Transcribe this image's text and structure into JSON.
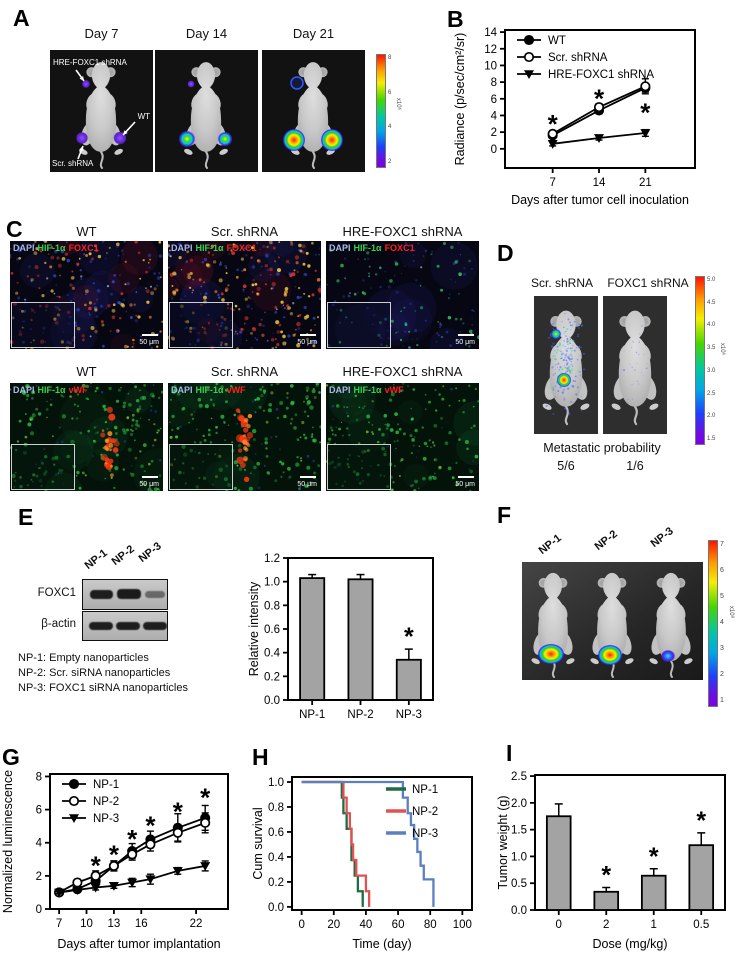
{
  "panels": {
    "A": {
      "label": "A",
      "day_titles": [
        "Day 7",
        "Day 14",
        "Day 21"
      ],
      "annotation_hre": "HRE-FOXC1 shRNA",
      "annotation_wt": "WT",
      "annotation_scr": "Scr. shRNA",
      "colorbar_ticks": [
        "8",
        "6",
        "4",
        "2"
      ],
      "colorbar_unit": "x10⁶"
    },
    "B": {
      "label": "B"
    },
    "C": {
      "label": "C",
      "col_titles": [
        "WT",
        "Scr. shRNA",
        "HRE-FOXC1 shRNA"
      ],
      "row1_markers": {
        "dapi": "DAPI",
        "hif": "HIF-1α",
        "third": "FOXC1"
      },
      "row2_markers": {
        "dapi": "DAPI",
        "hif": "HIF-1α",
        "third": "vWF"
      },
      "marker_colors": {
        "dapi": "#aab8ea",
        "hif": "#39d24d",
        "third": "#ff2020"
      },
      "scale_label": "50 μm"
    },
    "D": {
      "label": "D",
      "titles": [
        "Scr. shRNA",
        "FOXC1 shRNA"
      ],
      "caption": "Metastatic probability",
      "probabilities": [
        "5/6",
        "1/6"
      ],
      "colorbar_ticks": [
        "5.0",
        "4.5",
        "4.0",
        "3.5",
        "3.0",
        "2.5",
        "2.0",
        "1.5"
      ],
      "colorbar_unit": "x10⁶"
    },
    "E": {
      "label": "E",
      "lane_labels": [
        "NP-1",
        "NP-2",
        "NP-3"
      ],
      "band_labels": [
        "FOXC1",
        "β-actin"
      ],
      "legend_lines": [
        "NP-1: Empty nanoparticles",
        "NP-2: Scr. siRNA nanoparticles",
        "NP-3: FOXC1 siRNA nanoparticles"
      ]
    },
    "F": {
      "label": "F",
      "lane_labels": [
        "NP-1",
        "NP-2",
        "NP-3"
      ],
      "colorbar_ticks": [
        "7",
        "6",
        "5",
        "4",
        "3",
        "2",
        "1"
      ],
      "colorbar_unit": "x10⁸"
    },
    "G": {
      "label": "G"
    },
    "H": {
      "label": "H"
    },
    "I": {
      "label": "I"
    }
  },
  "chart_data": [
    {
      "id": "chartB",
      "type": "line",
      "panel": "B",
      "xlabel": "Days after tumor cell inoculation",
      "ylabel": "Radiance (p/sec/cm²/sr)",
      "xlim": [
        -0.2,
        28.5
      ],
      "ylim": [
        -2.3,
        14.25
      ],
      "xticks": [
        7,
        14,
        21
      ],
      "yticks": [
        0,
        2,
        4,
        6,
        8,
        10,
        12,
        14
      ],
      "x": [
        7,
        14,
        21
      ],
      "series": [
        {
          "name": "WT",
          "marker": "circle",
          "fill": "filled",
          "color": "#000000",
          "values": [
            1.6,
            4.6,
            7.3
          ],
          "errors": [
            0.3,
            0.4,
            0.5
          ]
        },
        {
          "name": "Scr. shRNA",
          "marker": "circle",
          "fill": "open",
          "color": "#000000",
          "values": [
            1.8,
            5.0,
            7.5
          ],
          "errors": [
            0.3,
            0.4,
            0.9
          ]
        },
        {
          "name": "HRE-FOXC1 shRNA",
          "marker": "triangle-down",
          "fill": "filled",
          "color": "#000000",
          "values": [
            0.6,
            1.3,
            1.9
          ],
          "errors": [
            0.25,
            0.25,
            0.4
          ]
        }
      ],
      "asterisks": [
        {
          "x": 7,
          "y": 3.2
        },
        {
          "x": 14,
          "y": 6.3
        },
        {
          "x": 21,
          "y": 4.6
        }
      ],
      "legend": {
        "position": "top-left"
      }
    },
    {
      "id": "chartE",
      "type": "bar",
      "panel": "E",
      "ylabel": "Relative intensity",
      "categories": [
        "NP-1",
        "NP-2",
        "NP-3"
      ],
      "values": [
        1.03,
        1.02,
        0.34
      ],
      "errors": [
        0.03,
        0.04,
        0.09
      ],
      "asterisk_indices": [
        2
      ],
      "ylim": [
        0,
        1.2
      ],
      "yticks": [
        0,
        0.2,
        0.4,
        0.6,
        0.8,
        1.0,
        1.2
      ],
      "ytick_decimals": 1,
      "bar_color": "#a3a3a3"
    },
    {
      "id": "chartG",
      "type": "line",
      "panel": "G",
      "xlabel": "Days after tumor implantation",
      "ylabel": "Normalized luminescence",
      "xlim": [
        6,
        25.5
      ],
      "ylim": [
        0,
        8.15
      ],
      "xticks": [
        7,
        10,
        13,
        16,
        22
      ],
      "yticks": [
        0,
        2,
        4,
        6,
        8
      ],
      "x": [
        7,
        9,
        11,
        13,
        15,
        17,
        20,
        23
      ],
      "series": [
        {
          "name": "NP-1",
          "marker": "circle",
          "fill": "filled",
          "color": "#000000",
          "values": [
            1.0,
            1.2,
            1.7,
            2.6,
            3.5,
            4.2,
            4.9,
            5.5
          ],
          "errors": [
            0.08,
            0.15,
            0.2,
            0.3,
            0.45,
            0.5,
            0.85,
            0.75
          ]
        },
        {
          "name": "NP-2",
          "marker": "circle",
          "fill": "open",
          "color": "#000000",
          "values": [
            1.0,
            1.6,
            2.0,
            2.6,
            3.3,
            3.9,
            4.6,
            5.2
          ],
          "errors": [
            0.08,
            0.2,
            0.3,
            0.3,
            0.35,
            0.4,
            0.5,
            0.6
          ]
        },
        {
          "name": "NP-3",
          "marker": "triangle-down",
          "fill": "filled",
          "color": "#000000",
          "values": [
            1.0,
            1.15,
            1.3,
            1.4,
            1.6,
            1.8,
            2.3,
            2.6
          ],
          "errors": [
            0.08,
            0.1,
            0.15,
            0.15,
            0.25,
            0.3,
            0.2,
            0.3
          ]
        }
      ],
      "asterisks": [
        {
          "x": 11,
          "y": 2.75
        },
        {
          "x": 13,
          "y": 3.4
        },
        {
          "x": 15,
          "y": 4.35
        },
        {
          "x": 17,
          "y": 5.15
        },
        {
          "x": 20,
          "y": 6.0
        },
        {
          "x": 23,
          "y": 6.85
        }
      ],
      "legend": {
        "position": "top-left"
      }
    },
    {
      "id": "chartH",
      "type": "step",
      "panel": "H",
      "xlabel": "Time (day)",
      "ylabel": "Cum survival",
      "xlim": [
        -6,
        106
      ],
      "ylim": [
        -0.025,
        1.04
      ],
      "xticks": [
        0,
        20,
        40,
        60,
        80,
        100
      ],
      "yticks": [
        0,
        0.2,
        0.4,
        0.6,
        0.8,
        1.0
      ],
      "ytick_decimals": 1,
      "series": [
        {
          "name": "NP-1",
          "color": "#1e6b45",
          "start": [
            0,
            1.0
          ],
          "drops": [
            [
              25,
              0.875
            ],
            [
              26,
              0.75
            ],
            [
              28,
              0.625
            ],
            [
              31,
              0.375
            ],
            [
              33,
              0.25
            ],
            [
              35,
              0.125
            ],
            [
              38,
              0
            ]
          ]
        },
        {
          "name": "NP-2",
          "color": "#e05252",
          "start": [
            0,
            1.0
          ],
          "drops": [
            [
              26,
              0.875
            ],
            [
              28,
              0.75
            ],
            [
              30,
              0.625
            ],
            [
              31,
              0.5
            ],
            [
              32,
              0.375
            ],
            [
              34,
              0.25
            ],
            [
              40,
              0.125
            ],
            [
              42,
              0
            ]
          ]
        },
        {
          "name": "NP-3",
          "color": "#5b7fc0",
          "start": [
            0,
            1.0
          ],
          "drops": [
            [
              63,
              0.875
            ],
            [
              66,
              0.75
            ],
            [
              68,
              0.655
            ],
            [
              70,
              0.545
            ],
            [
              72,
              0.44
            ],
            [
              74,
              0.33
            ],
            [
              76,
              0.22
            ],
            [
              82,
              0
            ]
          ]
        }
      ],
      "legend": {
        "position": "top-right"
      }
    },
    {
      "id": "chartI",
      "type": "bar",
      "panel": "I",
      "xlabel": "Dose (mg/kg)",
      "ylabel": "Tumor weight (g)",
      "categories": [
        "0",
        "2",
        "1",
        "0.5"
      ],
      "values": [
        1.75,
        0.34,
        0.64,
        1.21
      ],
      "errors": [
        0.23,
        0.08,
        0.13,
        0.23
      ],
      "asterisk_indices": [
        1,
        2,
        3
      ],
      "ylim": [
        0,
        2.52
      ],
      "yticks": [
        0,
        0.5,
        1.0,
        1.5,
        2.0,
        2.5
      ],
      "ytick_decimals": 1,
      "bar_color": "#a3a3a3"
    }
  ]
}
